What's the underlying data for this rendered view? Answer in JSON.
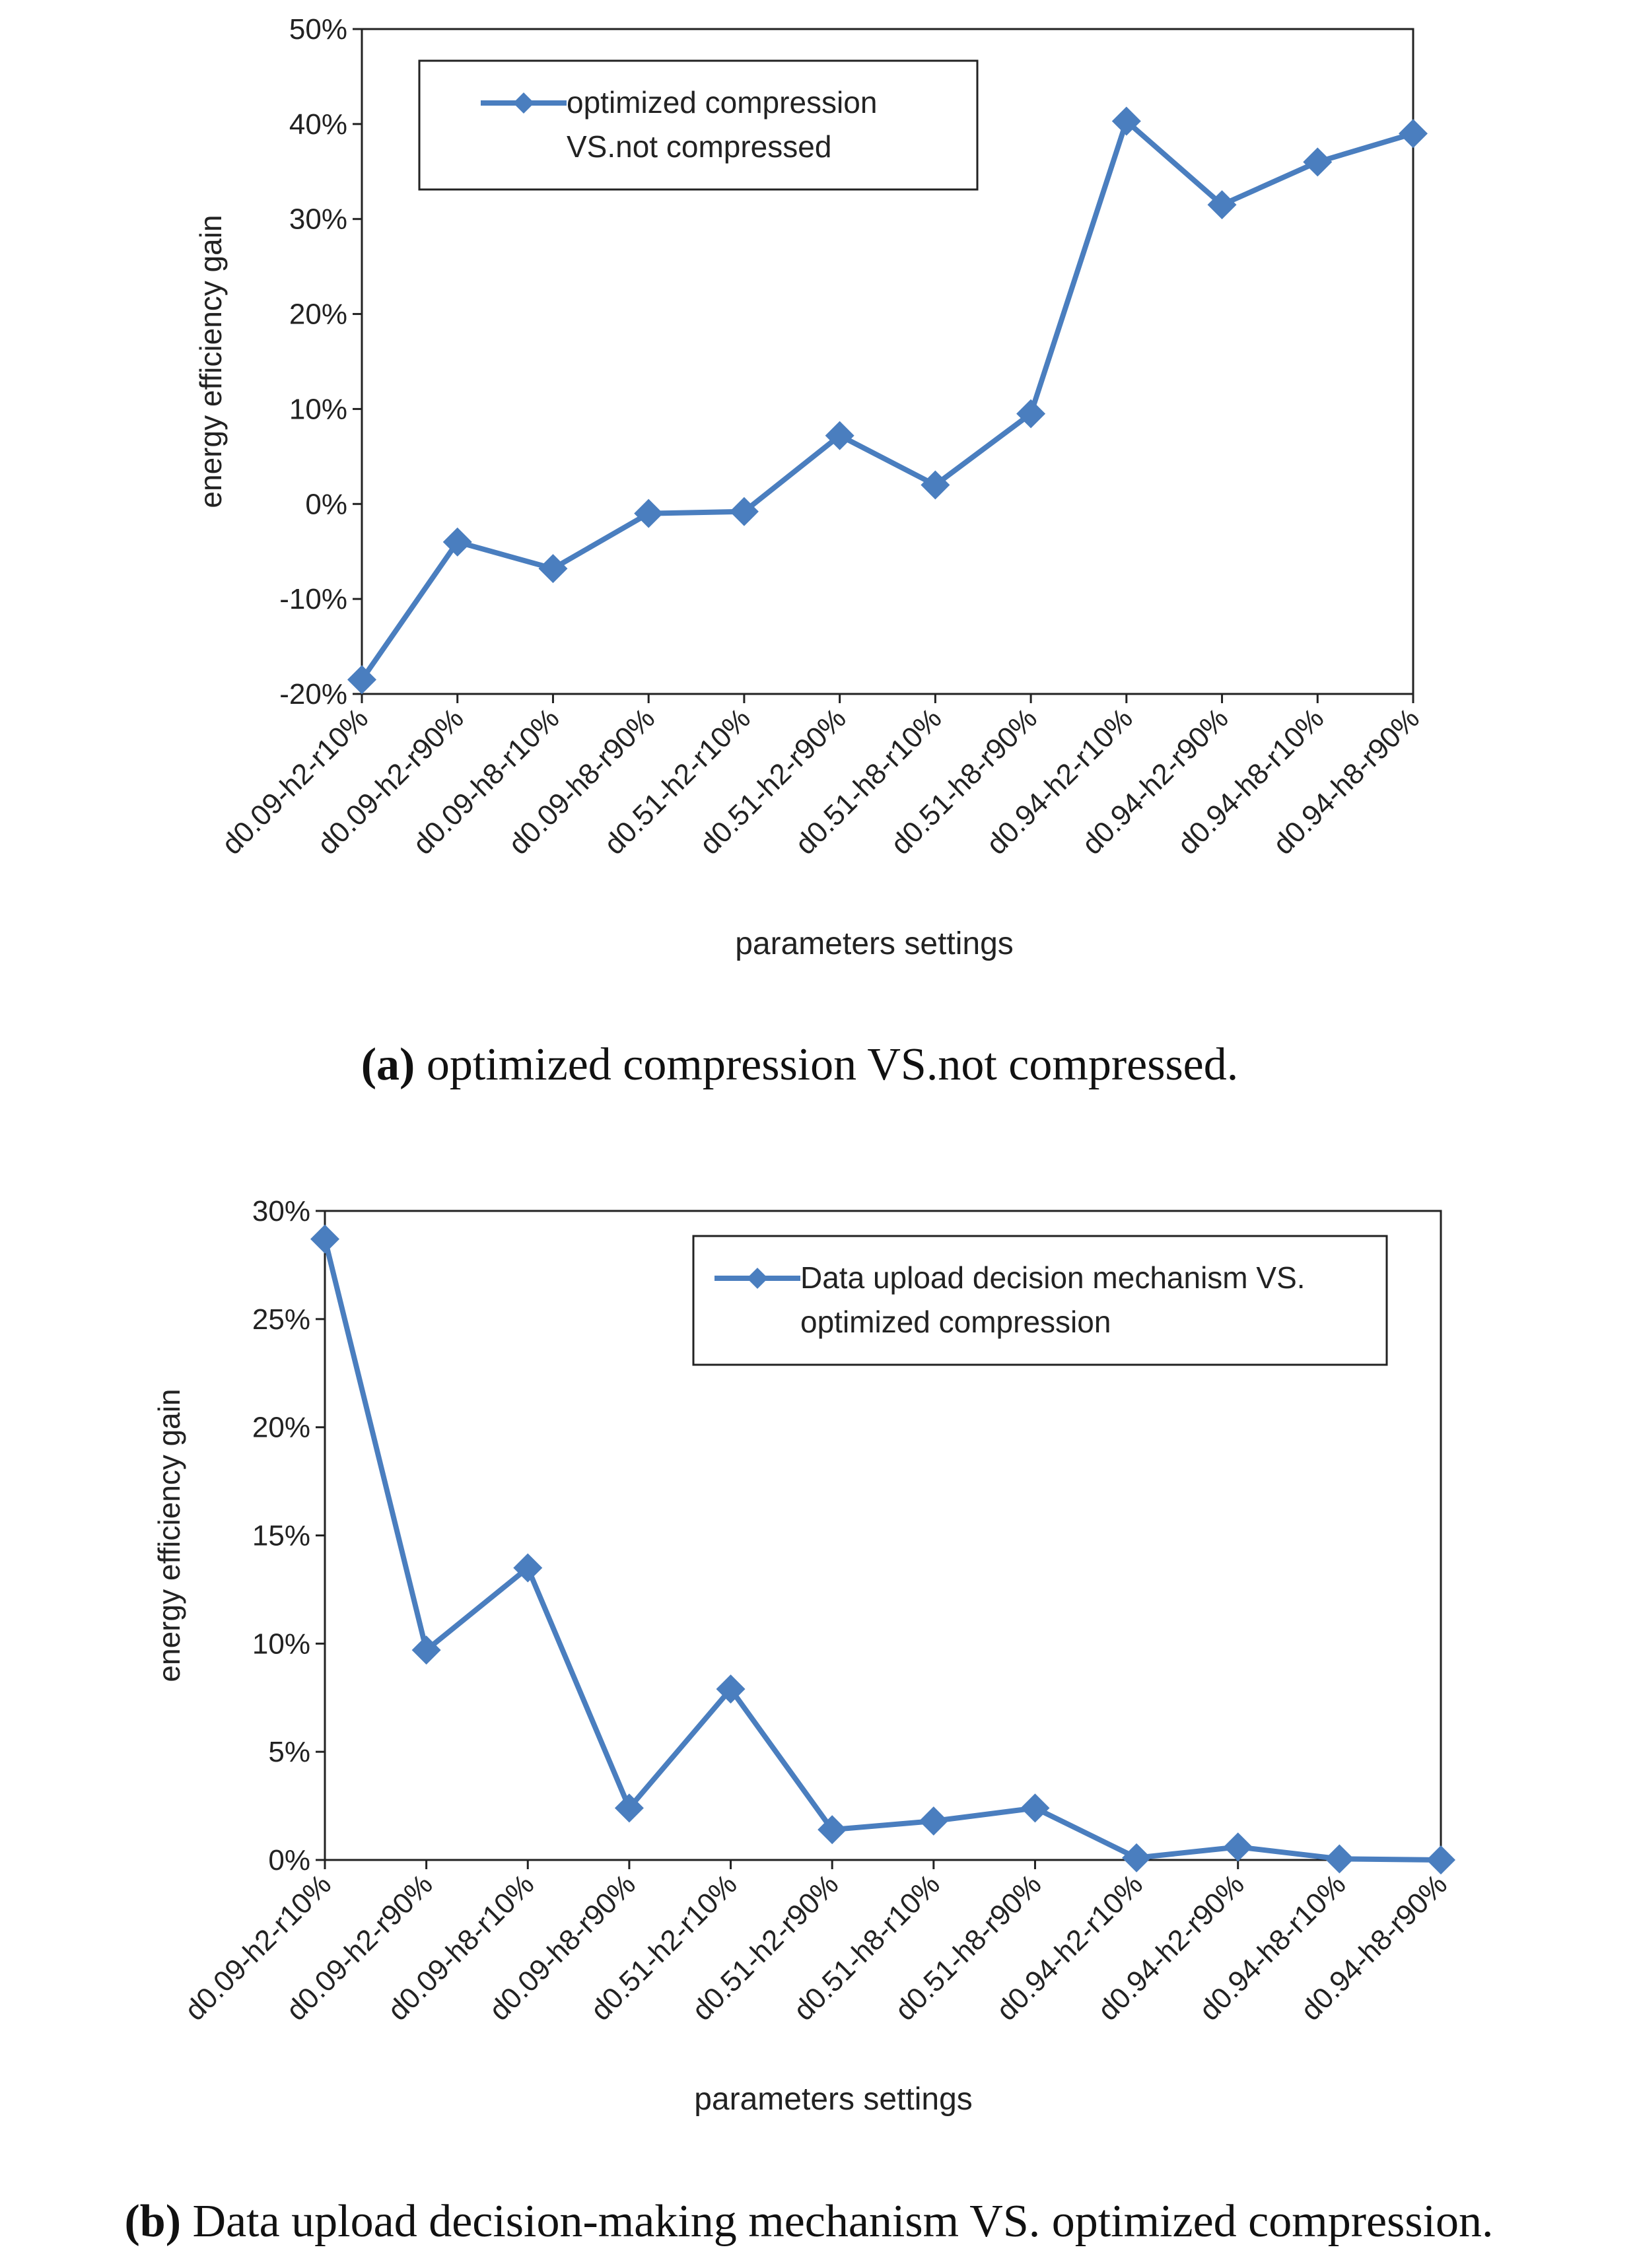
{
  "chart_data": [
    {
      "type": "line",
      "categories": [
        "d0.09-h2-r10%",
        "d0.09-h2-r90%",
        "d0.09-h8-r10%",
        "d0.09-h8-r90%",
        "d0.51-h2-r10%",
        "d0.51-h2-r90%",
        "d0.51-h8-r10%",
        "d0.51-h8-r90%",
        "d0.94-h2-r10%",
        "d0.94-h2-r90%",
        "d0.94-h8-r10%",
        "d0.94-h8-r90%"
      ],
      "series": [
        {
          "name": "optimized compression VS.not compressed",
          "values": [
            -18.5,
            -4.0,
            -6.8,
            -1.0,
            -0.8,
            7.2,
            2.0,
            9.5,
            40.3,
            31.5,
            36.0,
            39.0
          ]
        }
      ],
      "ylim": [
        -20,
        50
      ],
      "yticks": [
        -20,
        -10,
        0,
        10,
        20,
        30,
        40,
        50
      ],
      "ytick_labels": [
        "-20%",
        "-10%",
        "0%",
        "10%",
        "20%",
        "30%",
        "40%",
        "50%"
      ],
      "xlabel": "parameters settings",
      "ylabel": "energy  efficiency  gain",
      "legend": {
        "line1": "optimized compression",
        "line2": "VS.not compressed",
        "placement": "top-left"
      },
      "caption": {
        "tag": "(a)",
        "text": " optimized compression VS.not compressed."
      },
      "color": "#4a7ebf"
    },
    {
      "type": "line",
      "categories": [
        "d0.09-h2-r10%",
        "d0.09-h2-r90%",
        "d0.09-h8-r10%",
        "d0.09-h8-r90%",
        "d0.51-h2-r10%",
        "d0.51-h2-r90%",
        "d0.51-h8-r10%",
        "d0.51-h8-r90%",
        "d0.94-h2-r10%",
        "d0.94-h2-r90%",
        "d0.94-h8-r10%",
        "d0.94-h8-r90%"
      ],
      "series": [
        {
          "name": "Data upload decision mechanism VS. optimized compression",
          "values": [
            28.7,
            9.7,
            13.5,
            2.4,
            7.9,
            1.4,
            1.8,
            2.4,
            0.1,
            0.6,
            0.05,
            0.0
          ]
        }
      ],
      "ylim": [
        0,
        30
      ],
      "yticks": [
        0,
        5,
        10,
        15,
        20,
        25,
        30
      ],
      "ytick_labels": [
        "0%",
        "5%",
        "10%",
        "15%",
        "20%",
        "25%",
        "30%"
      ],
      "xlabel": "parameters settings",
      "ylabel": "energy  efficiency  gain",
      "legend": {
        "line1": "Data upload decision mechanism VS.",
        "line2": "optimized compression",
        "placement": "top-right"
      },
      "caption": {
        "tag": "(b)",
        "text": " Data upload decision-making mechanism VS. optimized compression."
      },
      "color": "#4a7ebf"
    }
  ]
}
